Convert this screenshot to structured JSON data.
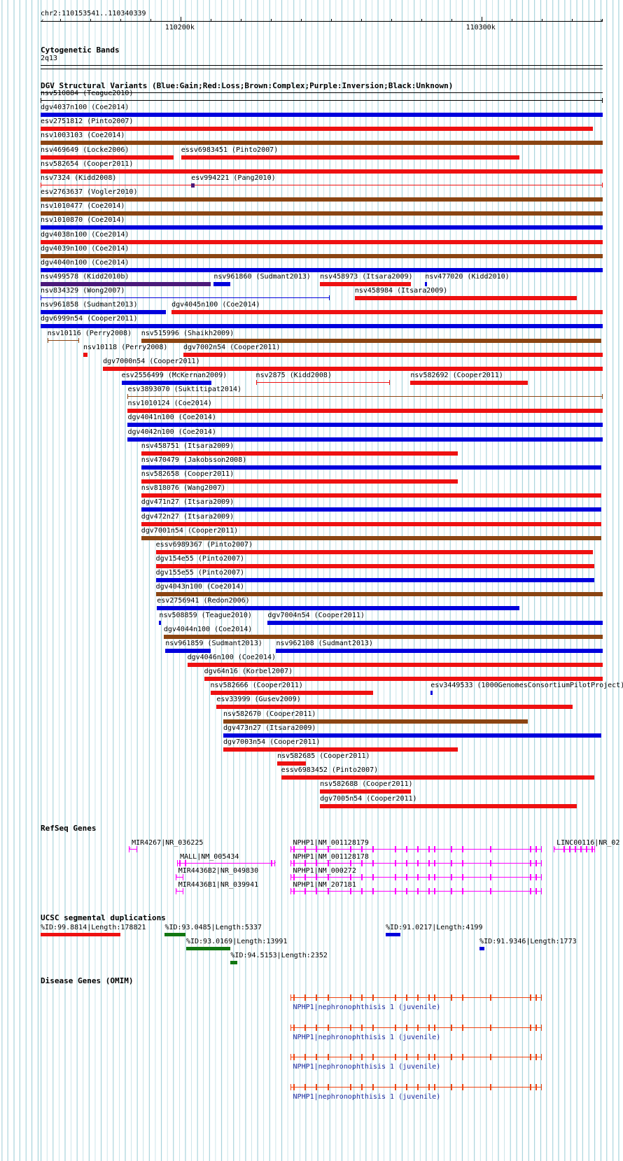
{
  "region": {
    "coordinate_label": "chr2:110153541..110340339",
    "start": 110153541,
    "end": 110340339,
    "ruler_ticks": [
      {
        "pos": 110200000,
        "label": "110200k"
      },
      {
        "pos": 110300000,
        "label": "110300k"
      }
    ]
  },
  "cyto": {
    "title": "Cytogenetic Bands",
    "band": "2q13"
  },
  "dgv": {
    "title": "DGV Structural Variants (Blue:Gain;Red:Loss;Brown:Complex;Purple:Inversion;Black:Unknown)",
    "colors": {
      "gain": "#0000dd",
      "loss": "#ee1111",
      "complex": "#8b4513",
      "inversion": "#4a1a7a",
      "unknown": "#000000"
    },
    "rows": [
      [
        {
          "label": "nsv510884 (Teague2010)",
          "x1": 0.0,
          "x2": 1.0,
          "type": "unknown",
          "style": "line"
        }
      ],
      [
        {
          "label": "dgv4037n100 (Coe2014)",
          "x1": 0.0,
          "x2": 1.0,
          "type": "gain"
        }
      ],
      [
        {
          "label": "esv2751812 (Pinto2007)",
          "x1": 0.0,
          "x2": 0.983,
          "type": "loss"
        }
      ],
      [
        {
          "label": "nsv1003103 (Coe2014)",
          "x1": 0.0,
          "x2": 1.0,
          "type": "complex"
        }
      ],
      [
        {
          "label": "nsv469649 (Locke2006)",
          "x1": 0.0,
          "x2": 0.236,
          "type": "loss"
        },
        {
          "label": "essv6983451 (Pinto2007)",
          "x1": 0.25,
          "x2": 0.852,
          "type": "loss"
        }
      ],
      [
        {
          "label": "nsv582654 (Cooper2011)",
          "x1": 0.0,
          "x2": 1.0,
          "type": "loss"
        }
      ],
      [
        {
          "label": "nsv7324 (Kidd2008)",
          "x1": 0.0,
          "x2": 1.0,
          "type": "loss",
          "style": "line"
        },
        {
          "label": "esv994221 (Pang2010)",
          "x1": 0.268,
          "x2": 0.274,
          "type": "inversion"
        }
      ],
      [
        {
          "label": "esv2763637 (Vogler2010)",
          "x1": 0.0,
          "x2": 1.0,
          "type": "complex"
        }
      ],
      [
        {
          "label": "nsv1010477 (Coe2014)",
          "x1": 0.0,
          "x2": 1.0,
          "type": "complex"
        }
      ],
      [
        {
          "label": "nsv1010870 (Coe2014)",
          "x1": 0.0,
          "x2": 1.0,
          "type": "gain"
        }
      ],
      [
        {
          "label": "dgv4038n100 (Coe2014)",
          "x1": 0.0,
          "x2": 1.0,
          "type": "loss"
        }
      ],
      [
        {
          "label": "dgv4039n100 (Coe2014)",
          "x1": 0.0,
          "x2": 1.0,
          "type": "complex"
        }
      ],
      [
        {
          "label": "dgv4040n100 (Coe2014)",
          "x1": 0.0,
          "x2": 1.0,
          "type": "gain"
        }
      ],
      [
        {
          "label": "nsv499578 (Kidd2010b)",
          "x1": 0.0,
          "x2": 0.303,
          "type": "inversion"
        },
        {
          "label": "nsv961860 (Sudmant2013)",
          "x1": 0.308,
          "x2": 0.337,
          "type": "gain"
        },
        {
          "label": "nsv458973 (Itsara2009)",
          "x1": 0.497,
          "x2": 0.659,
          "type": "loss"
        },
        {
          "label": "nsv477020 (Kidd2010)",
          "x1": 0.684,
          "x2": 0.687,
          "type": "gain"
        }
      ],
      [
        {
          "label": "nsv834329 (Wong2007)",
          "x1": 0.0,
          "x2": 0.514,
          "type": "gain",
          "style": "line"
        },
        {
          "label": "nsv458984 (Itsara2009)",
          "x1": 0.559,
          "x2": 0.954,
          "type": "loss"
        }
      ],
      [
        {
          "label": "nsv961858 (Sudmant2013)",
          "x1": 0.0,
          "x2": 0.223,
          "type": "gain"
        },
        {
          "label": "dgv4045n100 (Coe2014)",
          "x1": 0.233,
          "x2": 1.0,
          "type": "loss"
        }
      ],
      [
        {
          "label": "dgv6999n54 (Cooper2011)",
          "x1": 0.0,
          "x2": 1.0,
          "type": "gain"
        }
      ],
      [
        {
          "label": "nsv10116 (Perry2008)",
          "x1": 0.012,
          "x2": 0.069,
          "type": "complex",
          "style": "line"
        },
        {
          "label": "nsv515996 (Shaikh2009)",
          "x1": 0.179,
          "x2": 0.997,
          "type": "complex"
        }
      ],
      [
        {
          "label": "nsv10118 (Perry2008)",
          "x1": 0.076,
          "x2": 0.083,
          "type": "loss"
        },
        {
          "label": "dgv7002n54 (Cooper2011)",
          "x1": 0.254,
          "x2": 1.0,
          "type": "loss"
        }
      ],
      [
        {
          "label": "dgv7000n54 (Cooper2011)",
          "x1": 0.111,
          "x2": 1.0,
          "type": "loss"
        }
      ],
      [
        {
          "label": "esv2556499 (McKernan2009)",
          "x1": 0.144,
          "x2": 0.304,
          "type": "gain"
        },
        {
          "label": "nsv2875 (Kidd2008)",
          "x1": 0.383,
          "x2": 0.621,
          "type": "loss",
          "style": "line"
        },
        {
          "label": "nsv582692 (Cooper2011)",
          "x1": 0.658,
          "x2": 0.867,
          "type": "loss"
        }
      ],
      [
        {
          "label": "esv3893070 (Suktitipat2014)",
          "x1": 0.155,
          "x2": 1.0,
          "type": "complex",
          "style": "line"
        }
      ],
      [
        {
          "label": "nsv1010124 (Coe2014)",
          "x1": 0.155,
          "x2": 1.0,
          "type": "loss"
        }
      ],
      [
        {
          "label": "dgv4041n100 (Coe2014)",
          "x1": 0.155,
          "x2": 1.0,
          "type": "gain"
        }
      ],
      [
        {
          "label": "dgv4042n100 (Coe2014)",
          "x1": 0.155,
          "x2": 1.0,
          "type": "gain"
        }
      ],
      [
        {
          "label": "nsv458751 (Itsara2009)",
          "x1": 0.179,
          "x2": 0.742,
          "type": "loss"
        }
      ],
      [
        {
          "label": "nsv470479 (Jakobsson2008)",
          "x1": 0.179,
          "x2": 0.997,
          "type": "gain"
        }
      ],
      [
        {
          "label": "nsv582658 (Cooper2011)",
          "x1": 0.179,
          "x2": 0.742,
          "type": "loss"
        }
      ],
      [
        {
          "label": "nsv818076 (Wang2007)",
          "x1": 0.179,
          "x2": 0.997,
          "type": "loss"
        }
      ],
      [
        {
          "label": "dgv471n27 (Itsara2009)",
          "x1": 0.179,
          "x2": 0.997,
          "type": "gain"
        }
      ],
      [
        {
          "label": "dgv472n27 (Itsara2009)",
          "x1": 0.179,
          "x2": 0.997,
          "type": "loss"
        }
      ],
      [
        {
          "label": "dgv7001n54 (Cooper2011)",
          "x1": 0.179,
          "x2": 0.997,
          "type": "complex"
        }
      ],
      [
        {
          "label": "essv6989367 (Pinto2007)",
          "x1": 0.205,
          "x2": 0.983,
          "type": "loss"
        }
      ],
      [
        {
          "label": "dgv154e55 (Pinto2007)",
          "x1": 0.205,
          "x2": 0.985,
          "type": "loss"
        }
      ],
      [
        {
          "label": "dgv155e55 (Pinto2007)",
          "x1": 0.205,
          "x2": 0.985,
          "type": "gain"
        }
      ],
      [
        {
          "label": "dgv4043n100 (Coe2014)",
          "x1": 0.205,
          "x2": 1.0,
          "type": "complex"
        }
      ],
      [
        {
          "label": "esv2756941 (Redon2006)",
          "x1": 0.207,
          "x2": 0.852,
          "type": "gain"
        }
      ],
      [
        {
          "label": "nsv508859 (Teague2010)",
          "x1": 0.211,
          "x2": 0.214,
          "type": "gain"
        },
        {
          "label": "dgv7004n54 (Cooper2011)",
          "x1": 0.404,
          "x2": 1.0,
          "type": "gain"
        }
      ],
      [
        {
          "label": "dgv4044n100 (Coe2014)",
          "x1": 0.219,
          "x2": 1.0,
          "type": "complex"
        }
      ],
      [
        {
          "label": "nsv961859 (Sudmant2013)",
          "x1": 0.222,
          "x2": 0.302,
          "type": "gain"
        },
        {
          "label": "nsv962108 (Sudmant2013)",
          "x1": 0.419,
          "x2": 1.0,
          "type": "gain"
        }
      ],
      [
        {
          "label": "dgv4046n100 (Coe2014)",
          "x1": 0.261,
          "x2": 1.0,
          "type": "loss"
        }
      ],
      [
        {
          "label": "dgv64n16 (Korbel2007)",
          "x1": 0.291,
          "x2": 1.0,
          "type": "loss"
        }
      ],
      [
        {
          "label": "nsv582666 (Cooper2011)",
          "x1": 0.302,
          "x2": 0.592,
          "type": "loss"
        },
        {
          "label": "esv3449533 (1000GenomesConsortiumPilotProject)",
          "x1": 0.694,
          "x2": 0.697,
          "type": "gain"
        }
      ],
      [
        {
          "label": "esv33999 (Gusev2009)",
          "x1": 0.313,
          "x2": 0.946,
          "type": "loss"
        }
      ],
      [
        {
          "label": "nsv582670 (Cooper2011)",
          "x1": 0.325,
          "x2": 0.867,
          "type": "complex"
        }
      ],
      [
        {
          "label": "dgv473n27 (Itsara2009)",
          "x1": 0.325,
          "x2": 0.997,
          "type": "gain"
        }
      ],
      [
        {
          "label": "dgv7003n54 (Cooper2011)",
          "x1": 0.325,
          "x2": 0.742,
          "type": "loss"
        }
      ],
      [
        {
          "label": "nsv582685 (Cooper2011)",
          "x1": 0.421,
          "x2": 0.472,
          "type": "loss"
        }
      ],
      [
        {
          "label": "essv6983452 (Pinto2007)",
          "x1": 0.428,
          "x2": 0.985,
          "type": "loss"
        }
      ],
      [
        {
          "label": "nsv582688 (Cooper2011)",
          "x1": 0.497,
          "x2": 0.659,
          "type": "loss"
        }
      ],
      [
        {
          "label": "dgv7005n54 (Cooper2011)",
          "x1": 0.497,
          "x2": 0.954,
          "type": "loss"
        }
      ]
    ]
  },
  "refseq": {
    "title": "RefSeq Genes",
    "color": "#ff00ff",
    "genes": [
      {
        "label": "MIR4267|NR_036225",
        "x1": 0.157,
        "x2": 0.17,
        "strand": "-",
        "row": 0,
        "exons": []
      },
      {
        "label": "NPHP1|NM_001128179",
        "x1": 0.444,
        "x2": 0.89,
        "strand": "-",
        "row": 0,
        "exons": [
          0.45,
          0.47,
          0.49,
          0.51,
          0.55,
          0.57,
          0.59,
          0.63,
          0.65,
          0.67,
          0.69,
          0.7,
          0.73,
          0.75,
          0.8,
          0.87,
          0.88
        ]
      },
      {
        "label": "LINC00116|NR_02",
        "x1": 0.913,
        "x2": 0.985,
        "strand": "-",
        "row": 0,
        "exons": [
          0.93,
          0.94,
          0.95,
          0.96,
          0.97,
          0.98
        ]
      },
      {
        "label": "MALL|NM_005434",
        "x1": 0.243,
        "x2": 0.416,
        "strand": "+",
        "row": 1,
        "exons": [
          0.246,
          0.256,
          0.41
        ]
      },
      {
        "label": "NPHP1|NM_001128178",
        "x1": 0.444,
        "x2": 0.89,
        "strand": "-",
        "row": 1,
        "exons": [
          0.45,
          0.47,
          0.49,
          0.51,
          0.55,
          0.57,
          0.59,
          0.63,
          0.65,
          0.67,
          0.69,
          0.7,
          0.73,
          0.75,
          0.8,
          0.87,
          0.88
        ]
      },
      {
        "label": "MIR4436B2|NR_049830",
        "x1": 0.24,
        "x2": 0.253,
        "strand": "-",
        "row": 2,
        "exons": []
      },
      {
        "label": "NPHP1|NM_000272",
        "x1": 0.444,
        "x2": 0.89,
        "strand": "-",
        "row": 2,
        "exons": [
          0.45,
          0.47,
          0.49,
          0.51,
          0.55,
          0.57,
          0.59,
          0.63,
          0.65,
          0.67,
          0.69,
          0.7,
          0.73,
          0.75,
          0.8,
          0.87,
          0.88
        ]
      },
      {
        "label": "MIR4436B1|NR_039941",
        "x1": 0.24,
        "x2": 0.253,
        "strand": "-",
        "row": 3,
        "exons": []
      },
      {
        "label": "NPHP1|NM_207181",
        "x1": 0.444,
        "x2": 0.89,
        "strand": "-",
        "row": 3,
        "exons": [
          0.45,
          0.47,
          0.49,
          0.51,
          0.55,
          0.57,
          0.59,
          0.63,
          0.65,
          0.67,
          0.69,
          0.7,
          0.73,
          0.75,
          0.8,
          0.87,
          0.88
        ]
      }
    ]
  },
  "segdup": {
    "title": "UCSC segmental duplications",
    "items": [
      {
        "label": "%ID:99.8814|Length:178821",
        "x1": 0.0,
        "x2": 0.142,
        "color": "#ee1111",
        "row": 0
      },
      {
        "label": "%ID:93.0485|Length:5337",
        "x1": 0.221,
        "x2": 0.258,
        "color": "#117711",
        "row": 0
      },
      {
        "label": "%ID:91.0217|Length:4199",
        "x1": 0.614,
        "x2": 0.64,
        "color": "#0000dd",
        "row": 0
      },
      {
        "label": "%ID:93.0169|Length:13991",
        "x1": 0.259,
        "x2": 0.338,
        "color": "#117711",
        "row": 1
      },
      {
        "label": "%ID:91.9346|Length:1773",
        "x1": 0.781,
        "x2": 0.79,
        "color": "#0000dd",
        "row": 1
      },
      {
        "label": "%ID:94.5153|Length:2352",
        "x1": 0.338,
        "x2": 0.35,
        "color": "#117711",
        "row": 2
      }
    ]
  },
  "omim": {
    "title": "Disease Genes (OMIM)",
    "color": "#ee4411",
    "genes": [
      {
        "label": "NPHP1|nephronophthisis 1 (juvenile)",
        "x1": 0.444,
        "x2": 0.89,
        "exons": [
          0.45,
          0.47,
          0.49,
          0.51,
          0.55,
          0.57,
          0.59,
          0.63,
          0.65,
          0.67,
          0.69,
          0.7,
          0.73,
          0.75,
          0.8,
          0.87,
          0.88
        ]
      },
      {
        "label": "NPHP1|nephronophthisis 1 (juvenile)",
        "x1": 0.444,
        "x2": 0.89,
        "exons": [
          0.45,
          0.47,
          0.49,
          0.51,
          0.55,
          0.57,
          0.59,
          0.63,
          0.65,
          0.67,
          0.69,
          0.7,
          0.73,
          0.75,
          0.8,
          0.87,
          0.88
        ]
      },
      {
        "label": "NPHP1|nephronophthisis 1 (juvenile)",
        "x1": 0.444,
        "x2": 0.89,
        "exons": [
          0.45,
          0.47,
          0.49,
          0.51,
          0.55,
          0.57,
          0.59,
          0.63,
          0.65,
          0.67,
          0.69,
          0.7,
          0.73,
          0.75,
          0.8,
          0.87,
          0.88
        ]
      },
      {
        "label": "NPHP1|nephronophthisis 1 (juvenile)",
        "x1": 0.444,
        "x2": 0.89,
        "exons": [
          0.45,
          0.47,
          0.49,
          0.51,
          0.55,
          0.57,
          0.59,
          0.63,
          0.65,
          0.67,
          0.69,
          0.7,
          0.73,
          0.75,
          0.8,
          0.87,
          0.88
        ]
      }
    ]
  }
}
